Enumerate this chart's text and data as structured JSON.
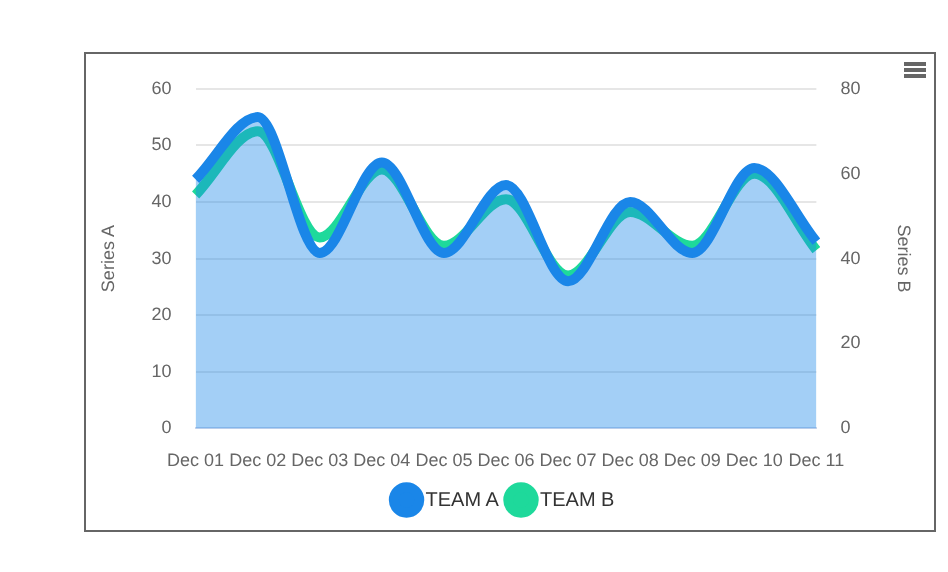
{
  "chart_data": {
    "type": "area",
    "xlabel": null,
    "ylabel": "Series A",
    "y2label": "Series B",
    "categories": [
      "Dec 01",
      "Dec 02",
      "Dec 03",
      "Dec 04",
      "Dec 05",
      "Dec 06",
      "Dec 07",
      "Dec 08",
      "Dec 09",
      "Dec 10",
      "Dec 11"
    ],
    "series": [
      {
        "name": "TEAM A",
        "type": "area",
        "color": "#1a86e8",
        "values": [
          44,
          55,
          31,
          47,
          31,
          43,
          26,
          40,
          31,
          46,
          33
        ]
      },
      {
        "name": "TEAM B",
        "type": "line",
        "axis": "y2",
        "color": "#1ed99b",
        "values": [
          55,
          70,
          45,
          61,
          43,
          54,
          36,
          51,
          43,
          60,
          42
        ]
      }
    ],
    "ylim": [
      0,
      60
    ],
    "yticks": [
      0,
      10,
      20,
      30,
      40,
      50,
      60
    ],
    "y2lim": [
      0,
      80
    ],
    "y2ticks": [
      0,
      20,
      40,
      60,
      80
    ],
    "grid": "y",
    "legend": "bottom",
    "marker": "none",
    "line_style": "solid"
  }
}
